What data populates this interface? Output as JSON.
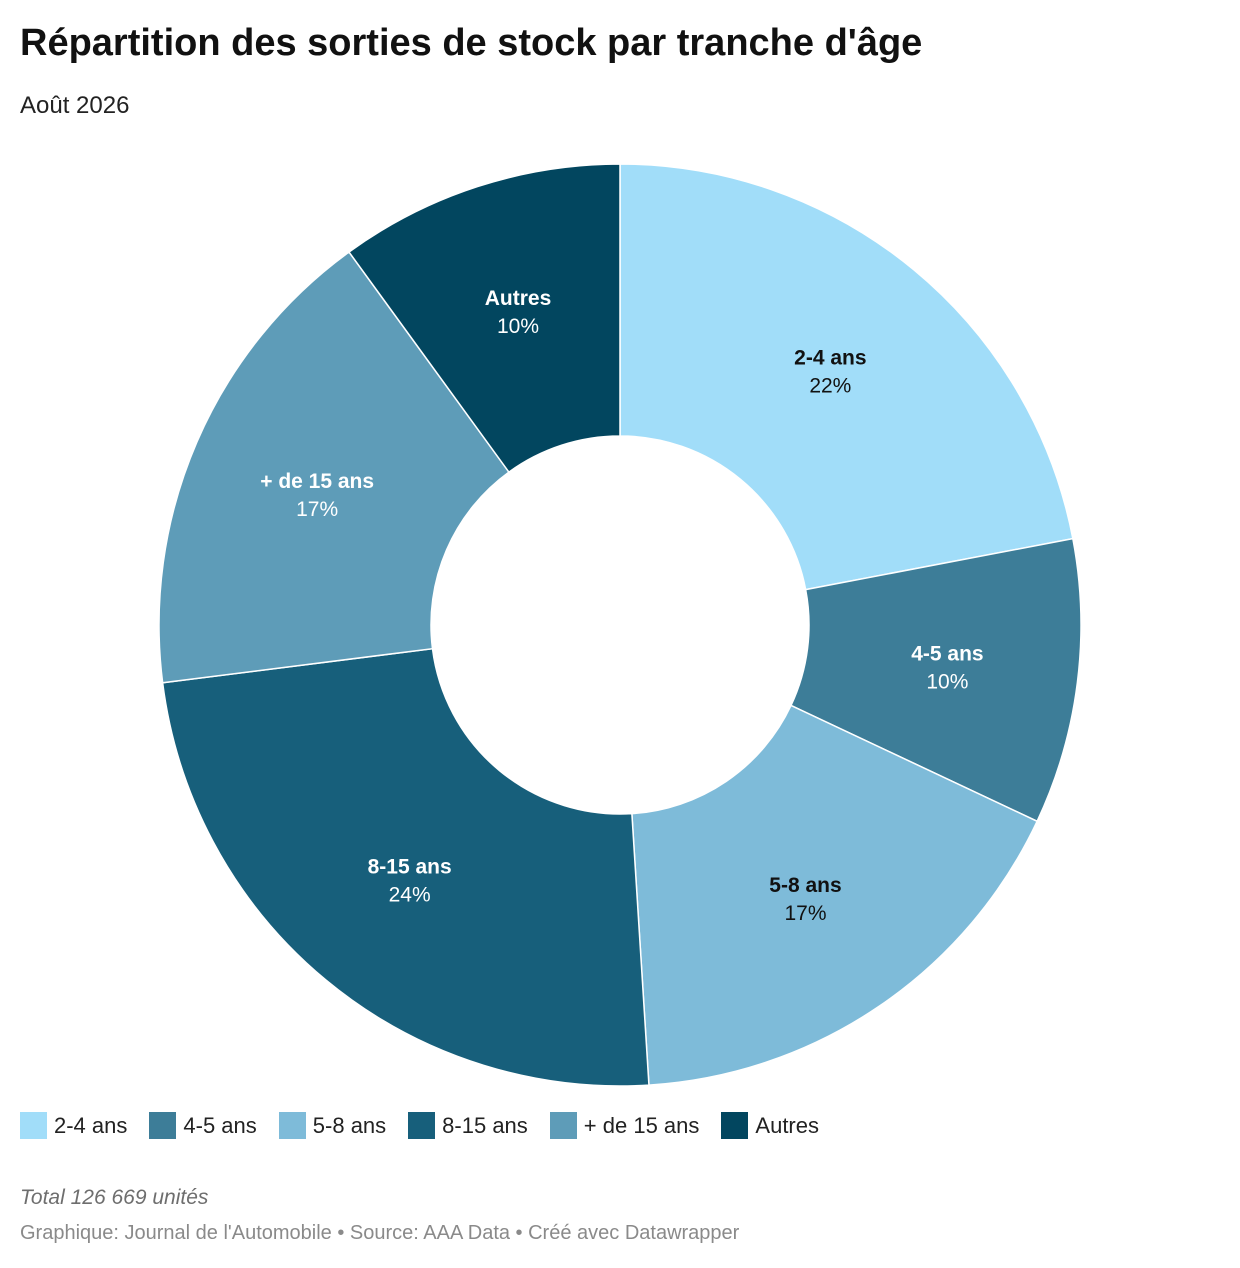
{
  "header": {
    "title": "Répartition des sorties de stock par tranche d'âge",
    "subtitle": "Août 2026"
  },
  "chart_data": {
    "type": "pie",
    "variant": "donut",
    "title": "Répartition des sorties de stock par tranche d'âge",
    "subtitle": "Août 2026",
    "categories": [
      "2-4 ans",
      "4-5 ans",
      "5-8 ans",
      "8-15 ans",
      "+ de 15 ans",
      "Autres"
    ],
    "values": [
      22,
      10,
      17,
      24,
      17,
      10
    ],
    "value_labels": [
      "22%",
      "10%",
      "17%",
      "24%",
      "17%",
      "10%"
    ],
    "unit": "%",
    "colors": [
      "#a1ddf9",
      "#3d7d98",
      "#7ebbd9",
      "#175f7b",
      "#5e9cb8",
      "#02465f"
    ],
    "label_colors": [
      "#111111",
      "#ffffff",
      "#111111",
      "#ffffff",
      "#ffffff",
      "#ffffff"
    ],
    "legend_position": "bottom-left"
  },
  "legend": {
    "items": [
      {
        "label": "2-4 ans",
        "color": "#a1ddf9"
      },
      {
        "label": "4-5 ans",
        "color": "#3d7d98"
      },
      {
        "label": "5-8 ans",
        "color": "#7ebbd9"
      },
      {
        "label": "8-15 ans",
        "color": "#175f7b"
      },
      {
        "label": "+ de 15 ans",
        "color": "#5e9cb8"
      },
      {
        "label": "Autres",
        "color": "#02465f"
      }
    ]
  },
  "notes": {
    "total": "Total 126 669 unités",
    "footer": "Graphique: Journal de l'Automobile • Source: AAA Data • Créé avec Datawrapper"
  }
}
